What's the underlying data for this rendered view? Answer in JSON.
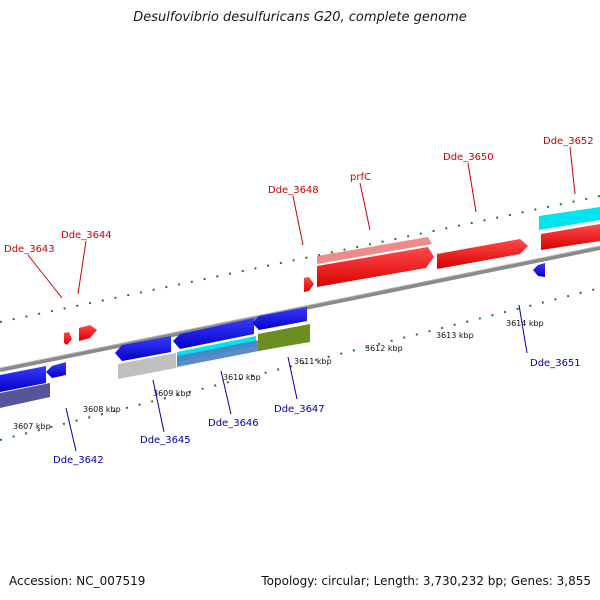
{
  "header": {
    "title": "Desulfovibrio desulfuricans G20, complete genome"
  },
  "footer": {
    "accession": "Accession: NC_007519",
    "topology": "Topology: circular; Length: 3,730,232 bp; Genes: 3,855"
  },
  "scale": {
    "ticks": [
      "3607 kbp",
      "3608 kbp",
      "3609 kbp",
      "3610 kbp",
      "3611 kbp",
      "3612 kbp",
      "3613 kbp",
      "3614 kbp"
    ]
  },
  "genes": {
    "top": [
      "Dde_3643",
      "Dde_3644",
      "Dde_3648",
      "prfC",
      "Dde_3650",
      "Dde_3652"
    ],
    "bottom": [
      "Dde_3642",
      "Dde_3645",
      "Dde_3646",
      "Dde_3647",
      "Dde_3651"
    ]
  },
  "colors": {
    "forward_gene": "#ff0000",
    "reverse_gene": "#0000ee",
    "forward_label": "#cc0000",
    "reverse_label": "#0000aa",
    "cyan_feature": "#00e5ee",
    "olive_feature": "#6b8e23",
    "pink_feature": "#f08080",
    "genome_line": "#888888"
  }
}
